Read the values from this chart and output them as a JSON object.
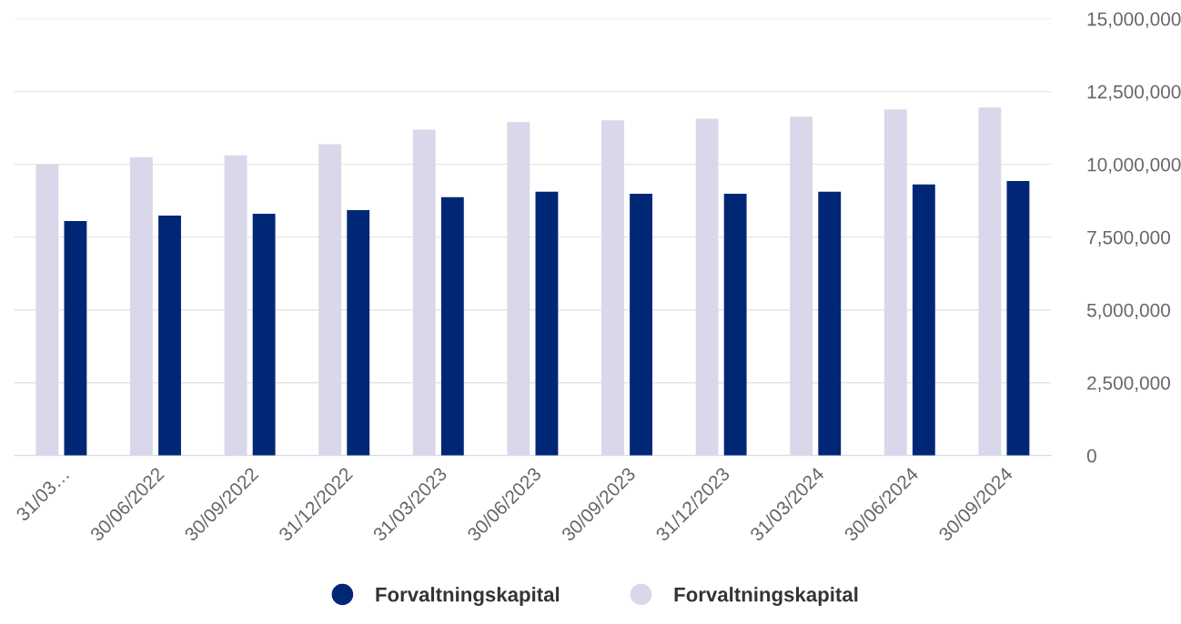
{
  "chart_data": {
    "type": "bar",
    "categories": [
      "31/03…",
      "30/06/2022",
      "30/09/2022",
      "31/12/2022",
      "31/03/2023",
      "30/06/2023",
      "30/09/2023",
      "31/12/2023",
      "31/03/2024",
      "30/06/2024",
      "30/09/2024"
    ],
    "series": [
      {
        "name": "Forvaltningskapital",
        "color": "#d9d8ea",
        "values": [
          10000000,
          10250000,
          10310000,
          10690000,
          11190000,
          11450000,
          11510000,
          11570000,
          11640000,
          11890000,
          11950000
        ]
      },
      {
        "name": "Forvaltningskapital",
        "color": "#002776",
        "values": [
          8050000,
          8240000,
          8300000,
          8430000,
          8870000,
          9060000,
          8990000,
          8990000,
          9060000,
          9310000,
          9430000
        ]
      }
    ],
    "ylim": [
      0,
      15000000
    ],
    "yticks": [
      {
        "value": 0,
        "label": "0"
      },
      {
        "value": 2500000,
        "label": "2,500,000"
      },
      {
        "value": 5000000,
        "label": "5,000,000"
      },
      {
        "value": 7500000,
        "label": "7,500,000"
      },
      {
        "value": 10000000,
        "label": "10,000,000"
      },
      {
        "value": 12500000,
        "label": "12,500,000"
      },
      {
        "value": 15000000,
        "label": "15,000,000"
      }
    ],
    "grid": "y",
    "legend": "bottom"
  }
}
